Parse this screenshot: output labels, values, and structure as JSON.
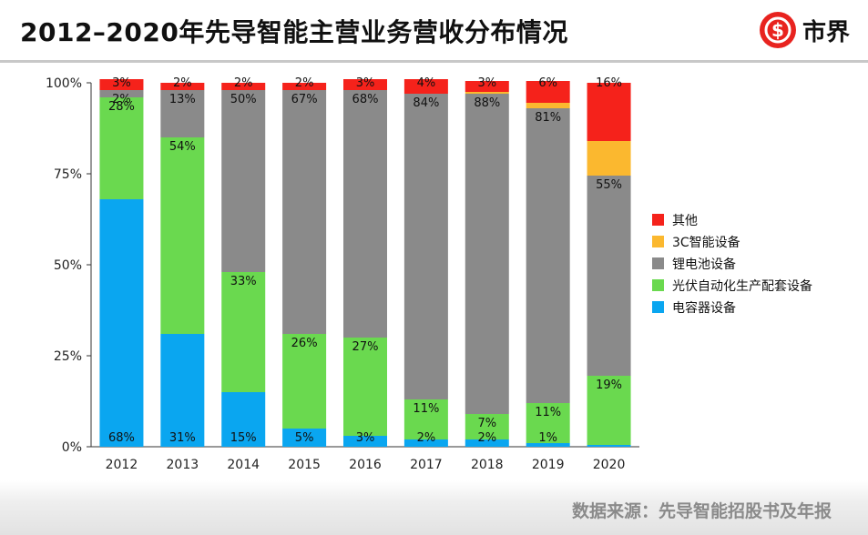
{
  "header": {
    "title": "2012–2020年先导智能主营业务营收分布情况",
    "logo_text": "市界"
  },
  "footer": {
    "source": "数据来源：先导智能招股书及年报"
  },
  "chart_data": {
    "type": "bar",
    "stacked": true,
    "title": "2012–2020年先导智能主营业务营收分布情况",
    "xlabel": "",
    "ylabel": "",
    "ylim": [
      0,
      100
    ],
    "y_ticks": [
      "0%",
      "25%",
      "50%",
      "75%",
      "100%"
    ],
    "legend_position": "right",
    "categories": [
      "2012",
      "2013",
      "2014",
      "2015",
      "2016",
      "2017",
      "2018",
      "2019",
      "2020"
    ],
    "series": [
      {
        "name": "电容器设备",
        "color": "#0aa6f0",
        "values": [
          68,
          31,
          15,
          5,
          3,
          2,
          2,
          1,
          0.5
        ],
        "labels": [
          "68%",
          "31%",
          "15%",
          "5%",
          "3%",
          "2%",
          "2%",
          "1%",
          null
        ]
      },
      {
        "name": "光伏自动化生产配套设备",
        "color": "#6ad94f",
        "values": [
          28,
          54,
          33,
          26,
          27,
          11,
          7,
          11,
          19
        ],
        "labels": [
          "28%",
          "54%",
          "33%",
          "26%",
          "27%",
          "11%",
          "7%",
          "11%",
          "19%"
        ]
      },
      {
        "name": "锂电池设备",
        "color": "#8a8a8a",
        "values": [
          2,
          13,
          50,
          67,
          68,
          84,
          88,
          81,
          55
        ],
        "labels": [
          "2%",
          "13%",
          "50%",
          "67%",
          "68%",
          "84%",
          "88%",
          "81%",
          "55%"
        ]
      },
      {
        "name": "3C智能设备",
        "color": "#fbb82f",
        "values": [
          0,
          0,
          0,
          0,
          0,
          0,
          0.5,
          1.5,
          9.5
        ],
        "labels": [
          null,
          null,
          null,
          null,
          null,
          null,
          null,
          null,
          null
        ]
      },
      {
        "name": "其他",
        "color": "#f5221b",
        "values": [
          3,
          2,
          2,
          2,
          3,
          4,
          3,
          6,
          16
        ],
        "labels": [
          "3%",
          "2%",
          "2%",
          "2%",
          "3%",
          "4%",
          "3%",
          "6%",
          "16%"
        ]
      }
    ]
  }
}
